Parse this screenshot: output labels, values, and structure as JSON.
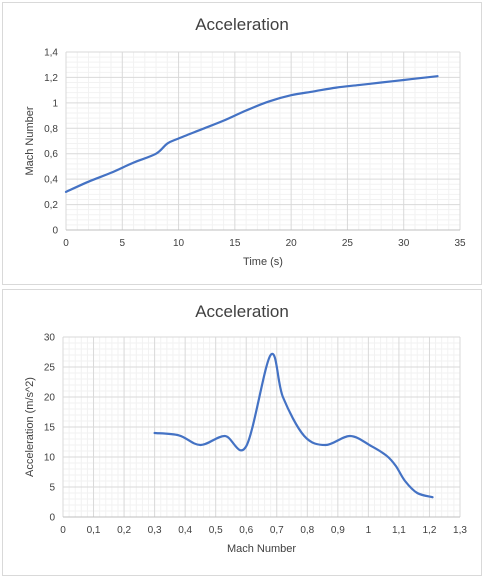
{
  "chart_data": [
    {
      "type": "line",
      "title": "Acceleration",
      "xlabel": "Time (s)",
      "ylabel": "Mach Number",
      "xlim": [
        0,
        35
      ],
      "ylim": [
        0,
        1.4
      ],
      "xticks": [
        "0",
        "5",
        "10",
        "15",
        "20",
        "25",
        "30",
        "35"
      ],
      "yticks": [
        "0",
        "0,2",
        "0,4",
        "0,6",
        "0,8",
        "1",
        "1,2",
        "1,4"
      ],
      "grid": true,
      "minor_grid": true,
      "legend": "none",
      "series": [
        {
          "color": "#4472c4",
          "x": [
            0,
            2,
            4,
            6,
            8,
            9,
            10,
            12,
            14,
            16,
            18,
            20,
            22,
            24,
            26,
            28,
            30,
            32,
            33
          ],
          "y": [
            0.3,
            0.38,
            0.45,
            0.53,
            0.6,
            0.68,
            0.72,
            0.79,
            0.86,
            0.94,
            1.01,
            1.06,
            1.09,
            1.12,
            1.14,
            1.16,
            1.18,
            1.2,
            1.21
          ]
        }
      ]
    },
    {
      "type": "line",
      "title": "Acceleration",
      "xlabel": "Mach Number",
      "ylabel": "Acceleration (m/s^2)",
      "xlim": [
        0,
        1.3
      ],
      "ylim": [
        0,
        30
      ],
      "xticks": [
        "0",
        "0,1",
        "0,2",
        "0,3",
        "0,4",
        "0,5",
        "0,6",
        "0,7",
        "0,8",
        "0,9",
        "1",
        "1,1",
        "1,2",
        "1,3"
      ],
      "yticks": [
        "0",
        "5",
        "10",
        "15",
        "20",
        "25",
        "30"
      ],
      "grid": true,
      "minor_grid": true,
      "legend": "none",
      "series": [
        {
          "color": "#4472c4",
          "x": [
            0.3,
            0.38,
            0.45,
            0.53,
            0.6,
            0.68,
            0.72,
            0.79,
            0.86,
            0.94,
            1.01,
            1.06,
            1.09,
            1.12,
            1.16,
            1.21
          ],
          "y": [
            14.0,
            13.6,
            12.0,
            13.5,
            11.8,
            27.0,
            20.0,
            13.5,
            12.0,
            13.5,
            11.8,
            10.2,
            8.5,
            6.0,
            4.0,
            3.3
          ]
        }
      ]
    }
  ]
}
